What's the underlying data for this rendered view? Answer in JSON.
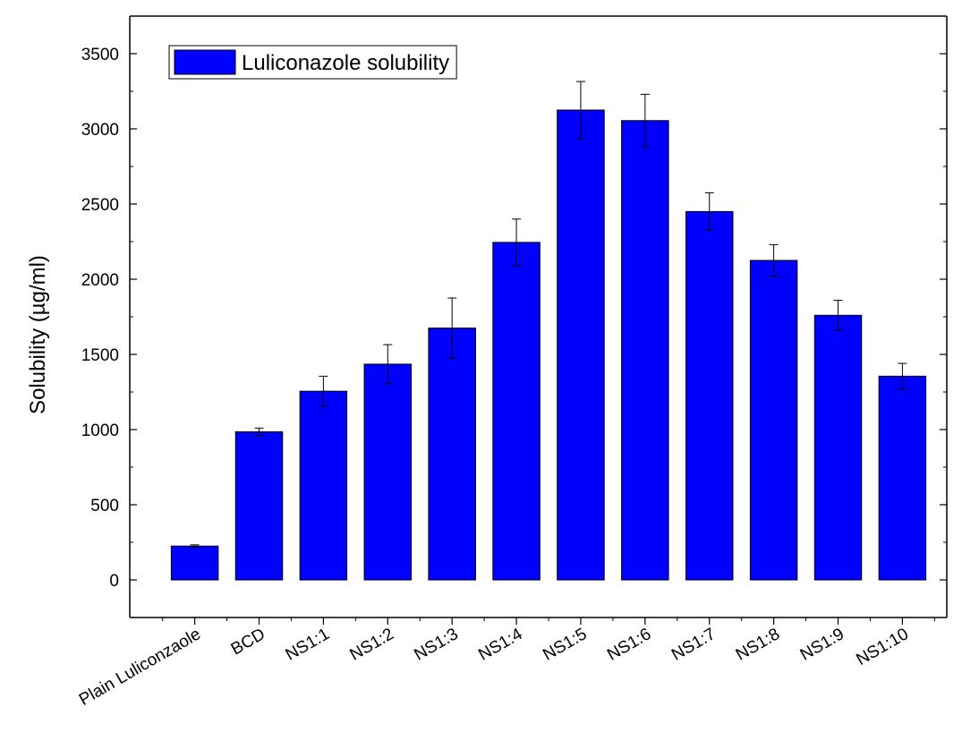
{
  "chart_data": {
    "type": "bar",
    "title": "",
    "xlabel": "",
    "ylabel": "Solubility (µg/ml)",
    "ylim": [
      -250,
      3750
    ],
    "yticks": [
      0,
      500,
      1000,
      1500,
      2000,
      2500,
      3000,
      3500
    ],
    "grid": false,
    "legend_position": "top-left",
    "bar_color": "#0000ff",
    "categories": [
      "Plain Luliconzaole",
      "BCD",
      "NS1:1",
      "NS1:2",
      "NS1:3",
      "NS1:4",
      "NS1:5",
      "NS1:6",
      "NS1:7",
      "NS1:8",
      "NS1:9",
      "NS1:10"
    ],
    "series": [
      {
        "name": "Luliconazole solubility",
        "values": [
          225,
          985,
          1255,
          1435,
          1675,
          2245,
          3125,
          3055,
          2450,
          2125,
          1760,
          1355
        ],
        "errors": [
          8,
          25,
          100,
          130,
          200,
          155,
          190,
          175,
          125,
          105,
          100,
          85
        ]
      }
    ]
  }
}
